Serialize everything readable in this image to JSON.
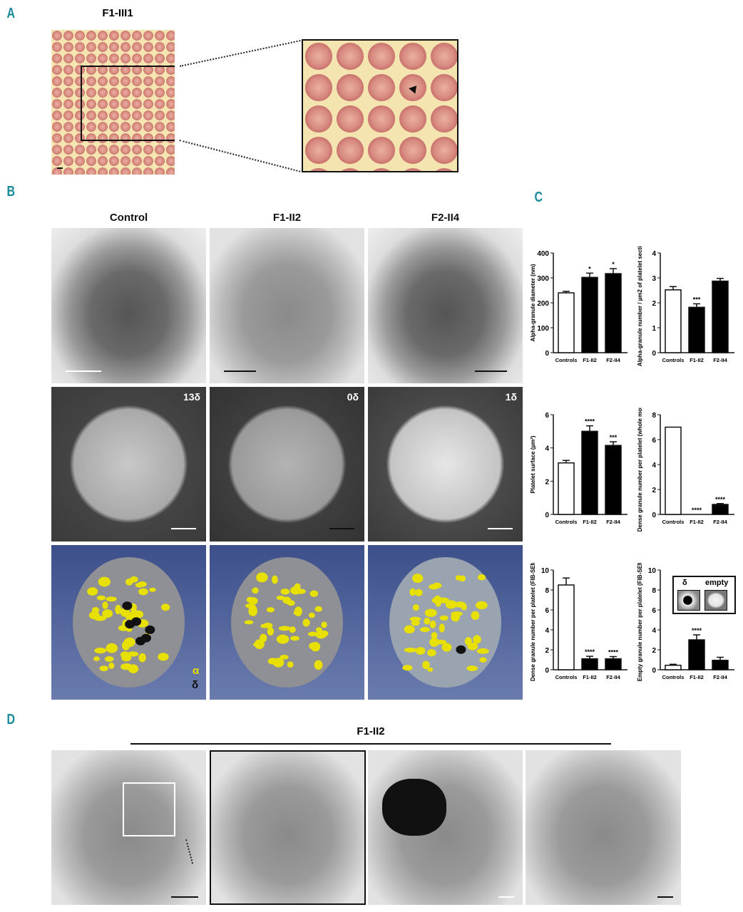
{
  "panels": {
    "A": "A",
    "B": "B",
    "C": "C",
    "D": "D"
  },
  "panelA": {
    "title": "F1-III1"
  },
  "panelB": {
    "columns": [
      "Control",
      "F1-II2",
      "F2-II4"
    ],
    "dense_counts": [
      "13δ",
      "0δ",
      "1δ"
    ],
    "legend": {
      "alpha": "α",
      "delta": "δ"
    }
  },
  "panelD": {
    "title": "F1-II2"
  },
  "colors": {
    "panel_label": "#1a8a9a",
    "alpha_granule": "#e8e000",
    "bar_control": "#ffffff",
    "bar_patient": "#000000"
  },
  "chart_data": [
    {
      "type": "bar",
      "ylabel": "Alpha-granule diameter (nm)",
      "categories": [
        "Controls",
        "F1-II2",
        "F2-II4"
      ],
      "values": [
        240,
        302,
        317
      ],
      "errors": [
        6,
        17,
        20
      ],
      "ylim": [
        0,
        400
      ],
      "yticks": [
        "0",
        "100",
        "200",
        "300",
        "400"
      ],
      "significance": [
        "",
        "*",
        "*"
      ]
    },
    {
      "type": "bar",
      "ylabel": "Alpha-granule number / µm2 of platelet section",
      "categories": [
        "Controls",
        "F1-II2",
        "F2-II4"
      ],
      "values": [
        2.52,
        1.82,
        2.87
      ],
      "errors": [
        0.13,
        0.14,
        0.11
      ],
      "ylim": [
        0,
        4
      ],
      "yticks": [
        "0",
        "1",
        "2",
        "3",
        "4"
      ],
      "significance": [
        "",
        "***",
        ""
      ]
    },
    {
      "type": "bar",
      "ylabel": "Platelet surface (µm²)",
      "categories": [
        "Controls",
        "F1-II2",
        "F2-II4"
      ],
      "values": [
        3.1,
        5.0,
        4.15
      ],
      "errors": [
        0.15,
        0.33,
        0.22
      ],
      "ylim": [
        0,
        6
      ],
      "yticks": [
        "0",
        "2",
        "4",
        "6"
      ],
      "significance": [
        "",
        "****",
        "***"
      ]
    },
    {
      "type": "bar",
      "ylabel": "Dense granule number per platelet (whole mount)",
      "categories": [
        "Controls",
        "F1-II2",
        "F2-II4"
      ],
      "values": [
        7.0,
        0,
        0.8
      ],
      "errors": [
        0,
        0,
        0.07
      ],
      "ylim": [
        0,
        8
      ],
      "yticks": [
        "0",
        "2",
        "4",
        "6",
        "8"
      ],
      "significance": [
        "",
        "****",
        "****"
      ]
    },
    {
      "type": "bar",
      "ylabel": "Dense granule number per platelet (FIB-SEM)",
      "categories": [
        "Controls",
        "F1-II2",
        "F2-II4"
      ],
      "values": [
        8.5,
        1.1,
        1.1
      ],
      "errors": [
        0.7,
        0.25,
        0.22
      ],
      "ylim": [
        0,
        10
      ],
      "yticks": [
        "0",
        "2",
        "4",
        "6",
        "8",
        "10"
      ],
      "significance": [
        "",
        "****",
        "****"
      ]
    },
    {
      "type": "bar",
      "ylabel": "Empty granule number per platelet (FIB-SEM)",
      "categories": [
        "Controls",
        "F1-II2",
        "F2-II4"
      ],
      "values": [
        0.45,
        3.0,
        0.95
      ],
      "errors": [
        0.1,
        0.5,
        0.3
      ],
      "ylim": [
        0,
        10
      ],
      "yticks": [
        "0",
        "2",
        "4",
        "6",
        "8",
        "10"
      ],
      "significance": [
        "",
        "****",
        ""
      ],
      "inset_labels": [
        "δ",
        "empty"
      ]
    }
  ]
}
